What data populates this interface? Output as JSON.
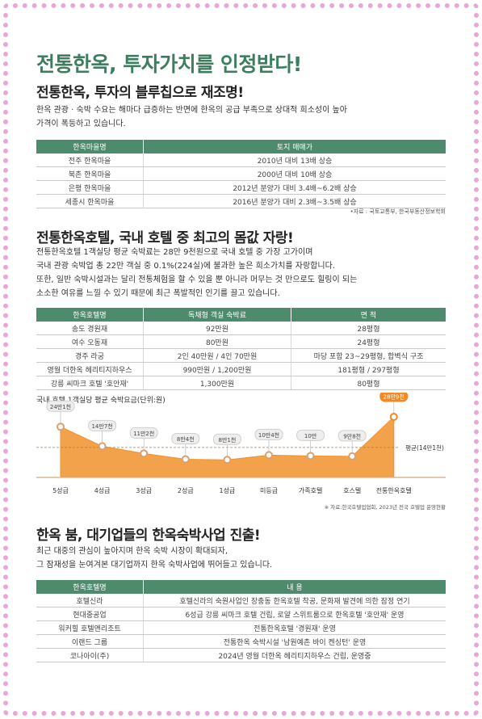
{
  "title": "전통한옥, 투자가치를 인정받다!",
  "sections": [
    {
      "heading": "전통한옥, 투자의 블루칩으로 재조명!",
      "paragraph": [
        "한옥 관광 · 숙박 수요는 해마다 급증하는 반면에 한옥의 공급 부족으로 상대적 희소성이 높아",
        "가격이 폭등하고 있습니다."
      ],
      "table": {
        "header": [
          "한옥마을명",
          "토지 매매가"
        ],
        "rows": [
          [
            "전주 한옥마을",
            "2010년 대비 13배 상승"
          ],
          [
            "북촌 한옥마을",
            "2000년 대비 10배 상승"
          ],
          [
            "은평 한옥마을",
            "2012년 분양가 대비 3.4배~6.2배 상승"
          ],
          [
            "세종시 한옥마을",
            "2016년 분양가 대비 2.3배~3.5배 상승"
          ]
        ]
      },
      "source": "•자료 : 국토교통부, 한국부동산정보학회"
    },
    {
      "heading": "전통한옥호텔, 국내 호텔 중 최고의 몸값 자랑!",
      "paragraph": [
        "전통한옥호텔 1객실당 평균 숙박료는 28만 9천원으로 국내 호텔 중 가장 고가이며",
        "국내 관광 숙박업 총 22만 객실 중 0.1%(224실)에 불과한 높은 희소가치를 자랑합니다.",
        "또한, 일반 숙박시설과는 달리 전통체험을 할 수 있을 뿐 아니라 머무는 것 만으로도 힐링이 되는",
        "소소한 여유를 느낄 수 있기 때문에 최근 폭발적인 인기를 끌고 있습니다."
      ],
      "table": {
        "header": [
          "한옥호텔명",
          "독채형 객실 숙박료",
          "면 적"
        ],
        "rows": [
          [
            "송도 경원재",
            "92만원",
            "28평형"
          ],
          [
            "여수 오동재",
            "80만원",
            "24평형"
          ],
          [
            "경주 라궁",
            "2인 40만원 / 4인 70만원",
            "마당 포함 23~29평형, 합벽식 구조"
          ],
          [
            "영월 더한옥 헤리티지하우스",
            "990만원 / 1,200만원",
            "181평형 / 297평형"
          ],
          [
            "강릉 씨마크 호텔 '호안재'",
            "1,300만원",
            "80평형"
          ]
        ]
      }
    },
    {
      "heading": "한옥 붐, 대기업들의 한옥숙박사업 진출!",
      "paragraph": [
        "최근 대중의 관심이 높아지며 한옥 숙박 시장이 확대되자,",
        "그 잠재성을 눈여겨본 대기업까지 한옥 숙박사업에 뛰어들고 있습니다."
      ],
      "table": {
        "header": [
          "한옥호텔명",
          "내 용"
        ],
        "rows": [
          [
            "호텔신라",
            "호텔신라의 숙원사업인 장충동 한옥호텔 착공, 문화재 발견에 의한 잠정 연기"
          ],
          [
            "현대중공업",
            "6성급 강릉 씨마크 호텔 건립, 로얄 스위트룸으로 한옥호텔 '호안재' 운영"
          ],
          [
            "워커힐 호텔앤리조트",
            "전통한옥호텔 '경원재' 운영"
          ],
          [
            "이랜드 그룹",
            "전통한옥 숙박시설 '남원예촌 바이 켄싱턴' 운영"
          ],
          [
            "코나아이(주)",
            "2024년 영월 더한옥 헤리티지하우스 건립, 운영중"
          ]
        ]
      }
    }
  ],
  "chart_data": {
    "type": "area",
    "title": "국내 호텔 1객실당 평균 숙박요금(단위:원)",
    "categories": [
      "5성급",
      "4성급",
      "3성급",
      "2성급",
      "1성급",
      "미등급",
      "가족호텔",
      "호스텔",
      "전통한옥호텔"
    ],
    "values": [
      241000,
      147000,
      112000,
      84000,
      81000,
      104000,
      100000,
      98000,
      289000
    ],
    "value_labels": [
      "24만1천",
      "14만7천",
      "11만2천",
      "8만4천",
      "8만1천",
      "10만4천",
      "10만",
      "9만8천",
      "28만9천"
    ],
    "average": {
      "value": 141000,
      "label": "평균(14만1천)"
    },
    "color": "#f0922b",
    "highlight_color": "#f08a24",
    "source": "※ 자료:한국호텔업협회, 2023년 전국 호텔업 운영현황"
  }
}
